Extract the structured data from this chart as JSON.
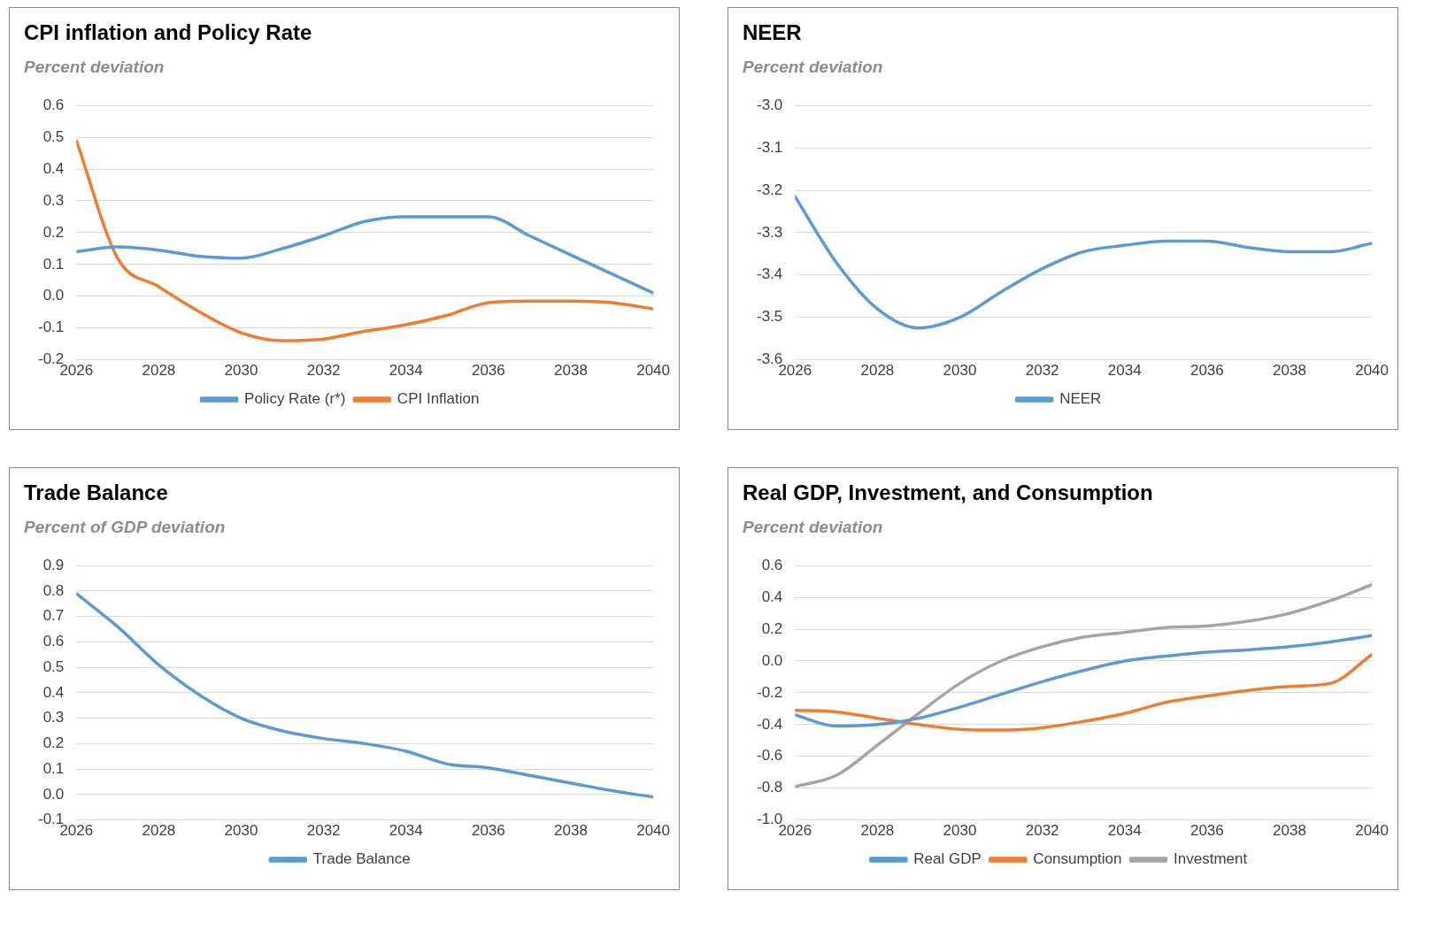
{
  "chart_data": [
    {
      "type": "line",
      "title": "CPI inflation and Policy Rate",
      "subtitle": "Percent deviation",
      "x": [
        2026,
        2027,
        2028,
        2029,
        2030,
        2031,
        2032,
        2033,
        2034,
        2035,
        2036,
        2037,
        2038,
        2039,
        2040
      ],
      "xlim": [
        2026,
        2040
      ],
      "xticks": [
        2026,
        2028,
        2030,
        2032,
        2034,
        2036,
        2038,
        2040
      ],
      "ylim": [
        -0.2,
        0.6
      ],
      "yticks": [
        -0.2,
        -0.1,
        {
          "value": 0,
          "label": "0.0"
        },
        0.1,
        0.2,
        0.3,
        0.4,
        0.5,
        0.6
      ],
      "grid": "y",
      "legend": "bottom",
      "marker": "none",
      "line_style": "solid",
      "series": [
        {
          "name": "Policy Rate (r*)",
          "color": "#5b9bd5",
          "values": [
            0.14,
            0.155,
            0.145,
            0.125,
            0.12,
            0.15,
            0.19,
            0.235,
            0.25,
            0.25,
            0.25,
            0.19,
            0.13,
            0.07,
            0.01
          ]
        },
        {
          "name": "CPI Inflation",
          "color": "#ed7d31",
          "values": [
            0.49,
            0.12,
            0.03,
            -0.05,
            -0.115,
            -0.14,
            -0.135,
            -0.11,
            -0.09,
            -0.06,
            -0.02,
            -0.015,
            -0.015,
            -0.02,
            -0.04
          ]
        }
      ]
    },
    {
      "type": "line",
      "title": "NEER",
      "subtitle": "Percent deviation",
      "x": [
        2026,
        2027,
        2028,
        2029,
        2030,
        2031,
        2032,
        2033,
        2034,
        2035,
        2036,
        2037,
        2038,
        2039,
        2040
      ],
      "xlim": [
        2026,
        2040
      ],
      "xticks": [
        2026,
        2028,
        2030,
        2032,
        2034,
        2036,
        2038,
        2040
      ],
      "ylim": [
        -3.6,
        -3.0
      ],
      "yticks": [
        -3.6,
        -3.5,
        -3.4,
        -3.3,
        -3.2,
        -3.1,
        {
          "value": -3,
          "label": "-3.0"
        }
      ],
      "grid": "y",
      "legend": "bottom",
      "marker": "none",
      "line_style": "solid",
      "series": [
        {
          "name": "NEER",
          "color": "#5b9bd5",
          "values": [
            -3.215,
            -3.37,
            -3.48,
            -3.525,
            -3.5,
            -3.44,
            -3.385,
            -3.345,
            -3.33,
            -3.32,
            -3.32,
            -3.335,
            -3.345,
            -3.345,
            -3.325
          ]
        }
      ]
    },
    {
      "type": "line",
      "title": "Trade Balance",
      "subtitle": "Percent of GDP deviation",
      "x": [
        2026,
        2027,
        2028,
        2029,
        2030,
        2031,
        2032,
        2033,
        2034,
        2035,
        2036,
        2037,
        2038,
        2039,
        2040
      ],
      "xlim": [
        2026,
        2040
      ],
      "xticks": [
        2026,
        2028,
        2030,
        2032,
        2034,
        2036,
        2038,
        2040
      ],
      "ylim": [
        -0.1,
        0.9
      ],
      "yticks": [
        -0.1,
        {
          "value": 0,
          "label": "0.0"
        },
        0.1,
        0.2,
        0.3,
        0.4,
        0.5,
        0.6,
        0.7,
        0.8,
        0.9
      ],
      "grid": "y",
      "legend": "bottom",
      "marker": "none",
      "line_style": "solid",
      "series": [
        {
          "name": "Trade Balance",
          "color": "#5b9bd5",
          "values": [
            0.79,
            0.66,
            0.51,
            0.39,
            0.3,
            0.25,
            0.22,
            0.2,
            0.17,
            0.12,
            0.105,
            0.075,
            0.045,
            0.015,
            -0.01
          ]
        }
      ]
    },
    {
      "type": "line",
      "title": "Real GDP, Investment, and Consumption",
      "subtitle": "Percent deviation",
      "x": [
        2026,
        2027,
        2028,
        2029,
        2030,
        2031,
        2032,
        2033,
        2034,
        2035,
        2036,
        2037,
        2038,
        2039,
        2040
      ],
      "xlim": [
        2026,
        2040
      ],
      "xticks": [
        2026,
        2028,
        2030,
        2032,
        2034,
        2036,
        2038,
        2040
      ],
      "ylim": [
        -1.0,
        0.6
      ],
      "yticks": [
        {
          "value": -1,
          "label": "-1.0"
        },
        -0.8,
        -0.6,
        -0.4,
        -0.2,
        {
          "value": 0,
          "label": "0.0"
        },
        0.2,
        0.4,
        0.6
      ],
      "grid": "y",
      "legend": "bottom",
      "marker": "none",
      "line_style": "solid",
      "series": [
        {
          "name": "Real GDP",
          "color": "#5b9bd5",
          "values": [
            -0.34,
            -0.41,
            -0.4,
            -0.36,
            -0.29,
            -0.21,
            -0.13,
            -0.06,
            0.0,
            0.03,
            0.055,
            0.07,
            0.09,
            0.12,
            0.16
          ]
        },
        {
          "name": "Consumption",
          "color": "#ed7d31",
          "values": [
            -0.31,
            -0.32,
            -0.36,
            -0.4,
            -0.43,
            -0.435,
            -0.42,
            -0.38,
            -0.33,
            -0.26,
            -0.22,
            -0.185,
            -0.16,
            -0.14,
            0.04
          ]
        },
        {
          "name": "Investment",
          "color": "#a5a5a5",
          "values": [
            -0.79,
            -0.72,
            -0.53,
            -0.33,
            -0.14,
            0.0,
            0.09,
            0.15,
            0.18,
            0.21,
            0.22,
            0.25,
            0.3,
            0.38,
            0.48
          ]
        }
      ]
    }
  ]
}
